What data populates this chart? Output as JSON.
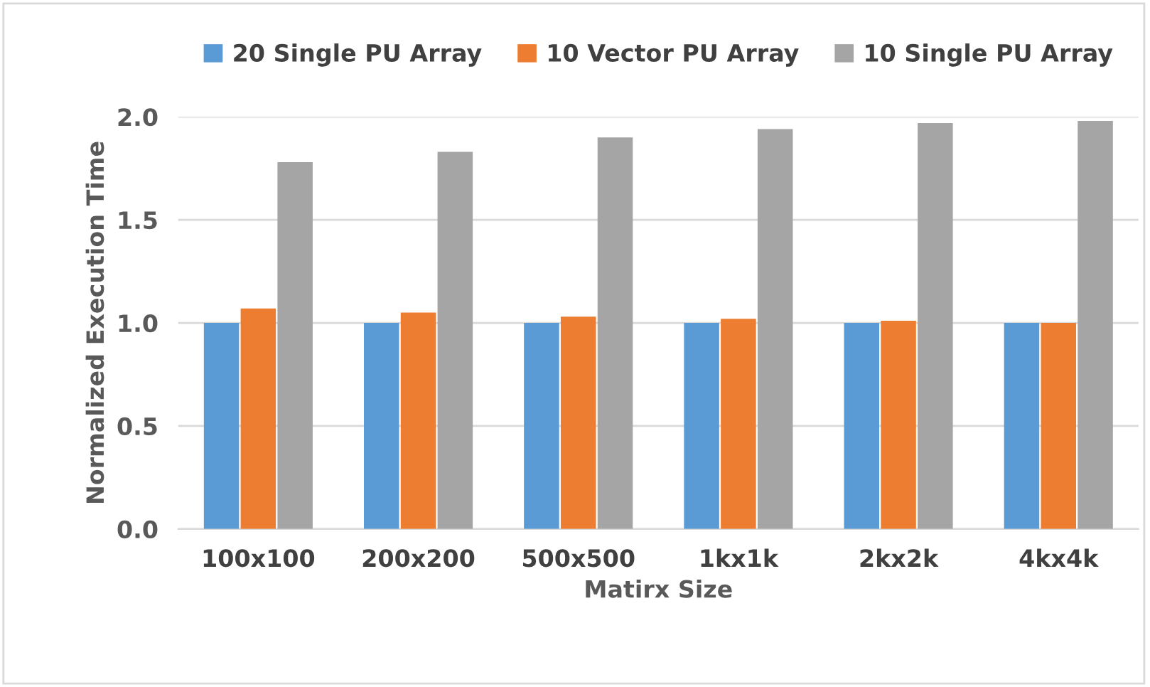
{
  "chart_data": {
    "type": "bar",
    "xlabel": "Matirx Size",
    "ylabel": "Normalized Execution Time",
    "categories": [
      "100x100",
      "200x200",
      "500x500",
      "1kx1k",
      "2kx2k",
      "4kx4k"
    ],
    "series": [
      {
        "name": "20 Single PU Array",
        "color": "#5b9bd5",
        "values": [
          1.0,
          1.0,
          1.0,
          1.0,
          1.0,
          1.0
        ]
      },
      {
        "name": "10 Vector PU Array",
        "color": "#ed7d31",
        "values": [
          1.07,
          1.05,
          1.03,
          1.02,
          1.01,
          1.0
        ]
      },
      {
        "name": "10 Single PU Array",
        "color": "#a5a5a5",
        "values": [
          1.78,
          1.83,
          1.9,
          1.94,
          1.97,
          1.98
        ]
      }
    ],
    "ylim": [
      0,
      2.0
    ],
    "yticks": [
      {
        "value": 0,
        "label": "0.0"
      },
      {
        "value": 0.5,
        "label": "0.5"
      },
      {
        "value": 1.0,
        "label": "1.0"
      },
      {
        "value": 1.5,
        "label": "1.5"
      },
      {
        "value": 2.0,
        "label": "2.0"
      }
    ],
    "grid": "y",
    "legend": "top"
  }
}
